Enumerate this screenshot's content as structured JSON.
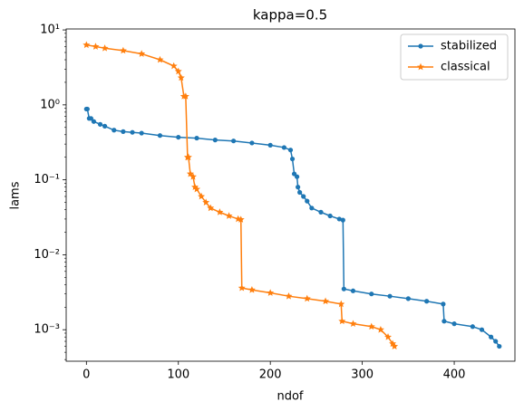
{
  "chart_data": {
    "type": "line",
    "title": "kappa=0.5",
    "x_label": "ndof",
    "y_label": "lams",
    "yscale": "log",
    "grid": false,
    "legend": "upper right",
    "xlim": [
      -22,
      466
    ],
    "ylim": [
      0.00038,
      10.3
    ],
    "xticks": [
      0,
      100,
      200,
      300,
      400
    ],
    "yticks": [
      {
        "value": 10,
        "label": "10¹"
      },
      {
        "value": 1,
        "label": "10⁰"
      },
      {
        "value": 0.1,
        "label": "10⁻¹"
      },
      {
        "value": 0.01,
        "label": "10⁻²"
      },
      {
        "value": 0.001,
        "label": "10⁻³"
      }
    ],
    "series": [
      {
        "name": "stabilized",
        "color": "#1f77b4",
        "marker": "circle",
        "x": [
          0,
          1,
          3,
          5,
          8,
          15,
          20,
          30,
          40,
          50,
          60,
          80,
          100,
          120,
          140,
          160,
          180,
          200,
          215,
          222,
          224,
          226,
          229,
          230,
          232,
          236,
          240,
          245,
          255,
          265,
          275,
          279,
          280,
          290,
          310,
          330,
          350,
          370,
          388,
          389,
          400,
          420,
          430,
          440,
          445,
          449
        ],
        "values": [
          0.88,
          0.88,
          0.66,
          0.66,
          0.6,
          0.55,
          0.52,
          0.46,
          0.44,
          0.43,
          0.42,
          0.39,
          0.37,
          0.36,
          0.34,
          0.33,
          0.31,
          0.29,
          0.27,
          0.25,
          0.19,
          0.12,
          0.11,
          0.08,
          0.068,
          0.06,
          0.052,
          0.042,
          0.037,
          0.033,
          0.03,
          0.029,
          0.0035,
          0.0033,
          0.003,
          0.0028,
          0.0026,
          0.0024,
          0.0022,
          0.0013,
          0.0012,
          0.0011,
          0.001,
          0.0008,
          0.0007,
          0.0006
        ]
      },
      {
        "name": "classical",
        "color": "#ff7f0e",
        "marker": "star",
        "x": [
          0,
          10,
          20,
          40,
          60,
          80,
          95,
          100,
          103,
          106,
          108,
          110,
          111,
          113,
          116,
          118,
          120,
          125,
          130,
          135,
          145,
          155,
          165,
          168,
          169,
          180,
          200,
          220,
          240,
          260,
          277,
          278,
          290,
          310,
          320,
          328,
          333,
          335
        ],
        "values": [
          6.3,
          6.0,
          5.7,
          5.3,
          4.8,
          4.0,
          3.3,
          2.8,
          2.3,
          1.3,
          1.3,
          0.2,
          0.2,
          0.12,
          0.11,
          0.08,
          0.075,
          0.06,
          0.05,
          0.042,
          0.037,
          0.033,
          0.03,
          0.0295,
          0.0036,
          0.0034,
          0.0031,
          0.0028,
          0.0026,
          0.0024,
          0.0022,
          0.0013,
          0.0012,
          0.0011,
          0.001,
          0.0008,
          0.00065,
          0.0006
        ]
      }
    ]
  }
}
